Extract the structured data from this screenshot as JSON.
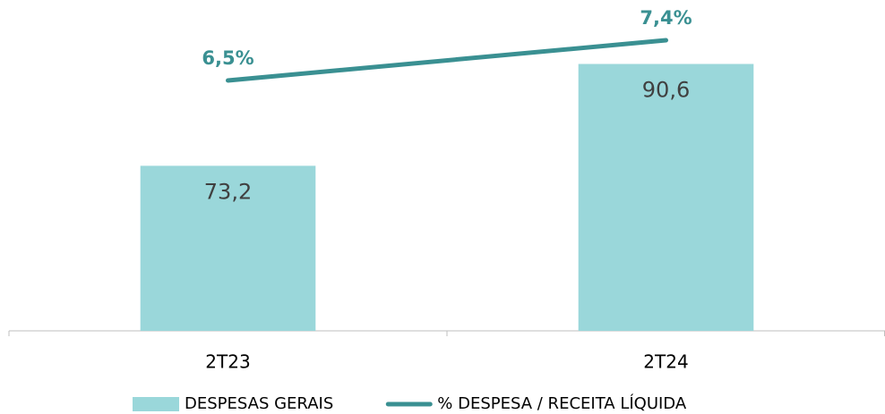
{
  "chart_data": {
    "type": "bar",
    "categories": [
      "2T23",
      "2T24"
    ],
    "series": [
      {
        "name": "DESPESAS GERAIS",
        "type": "bar",
        "color": "#9ad7da",
        "values": [
          73.2,
          90.6
        ],
        "value_labels": [
          "73,2",
          "90,6"
        ]
      },
      {
        "name": "% DESPESA / RECEITA LÍQUIDA",
        "type": "line",
        "axis": "y2",
        "color": "#3a9092",
        "values": [
          6.5,
          7.4
        ],
        "value_labels": [
          "6,5%",
          "7,4%"
        ]
      }
    ],
    "ylim": [
      45,
      100
    ],
    "y2lim": [
      0.9,
      8.1
    ],
    "legend": "bottom"
  }
}
